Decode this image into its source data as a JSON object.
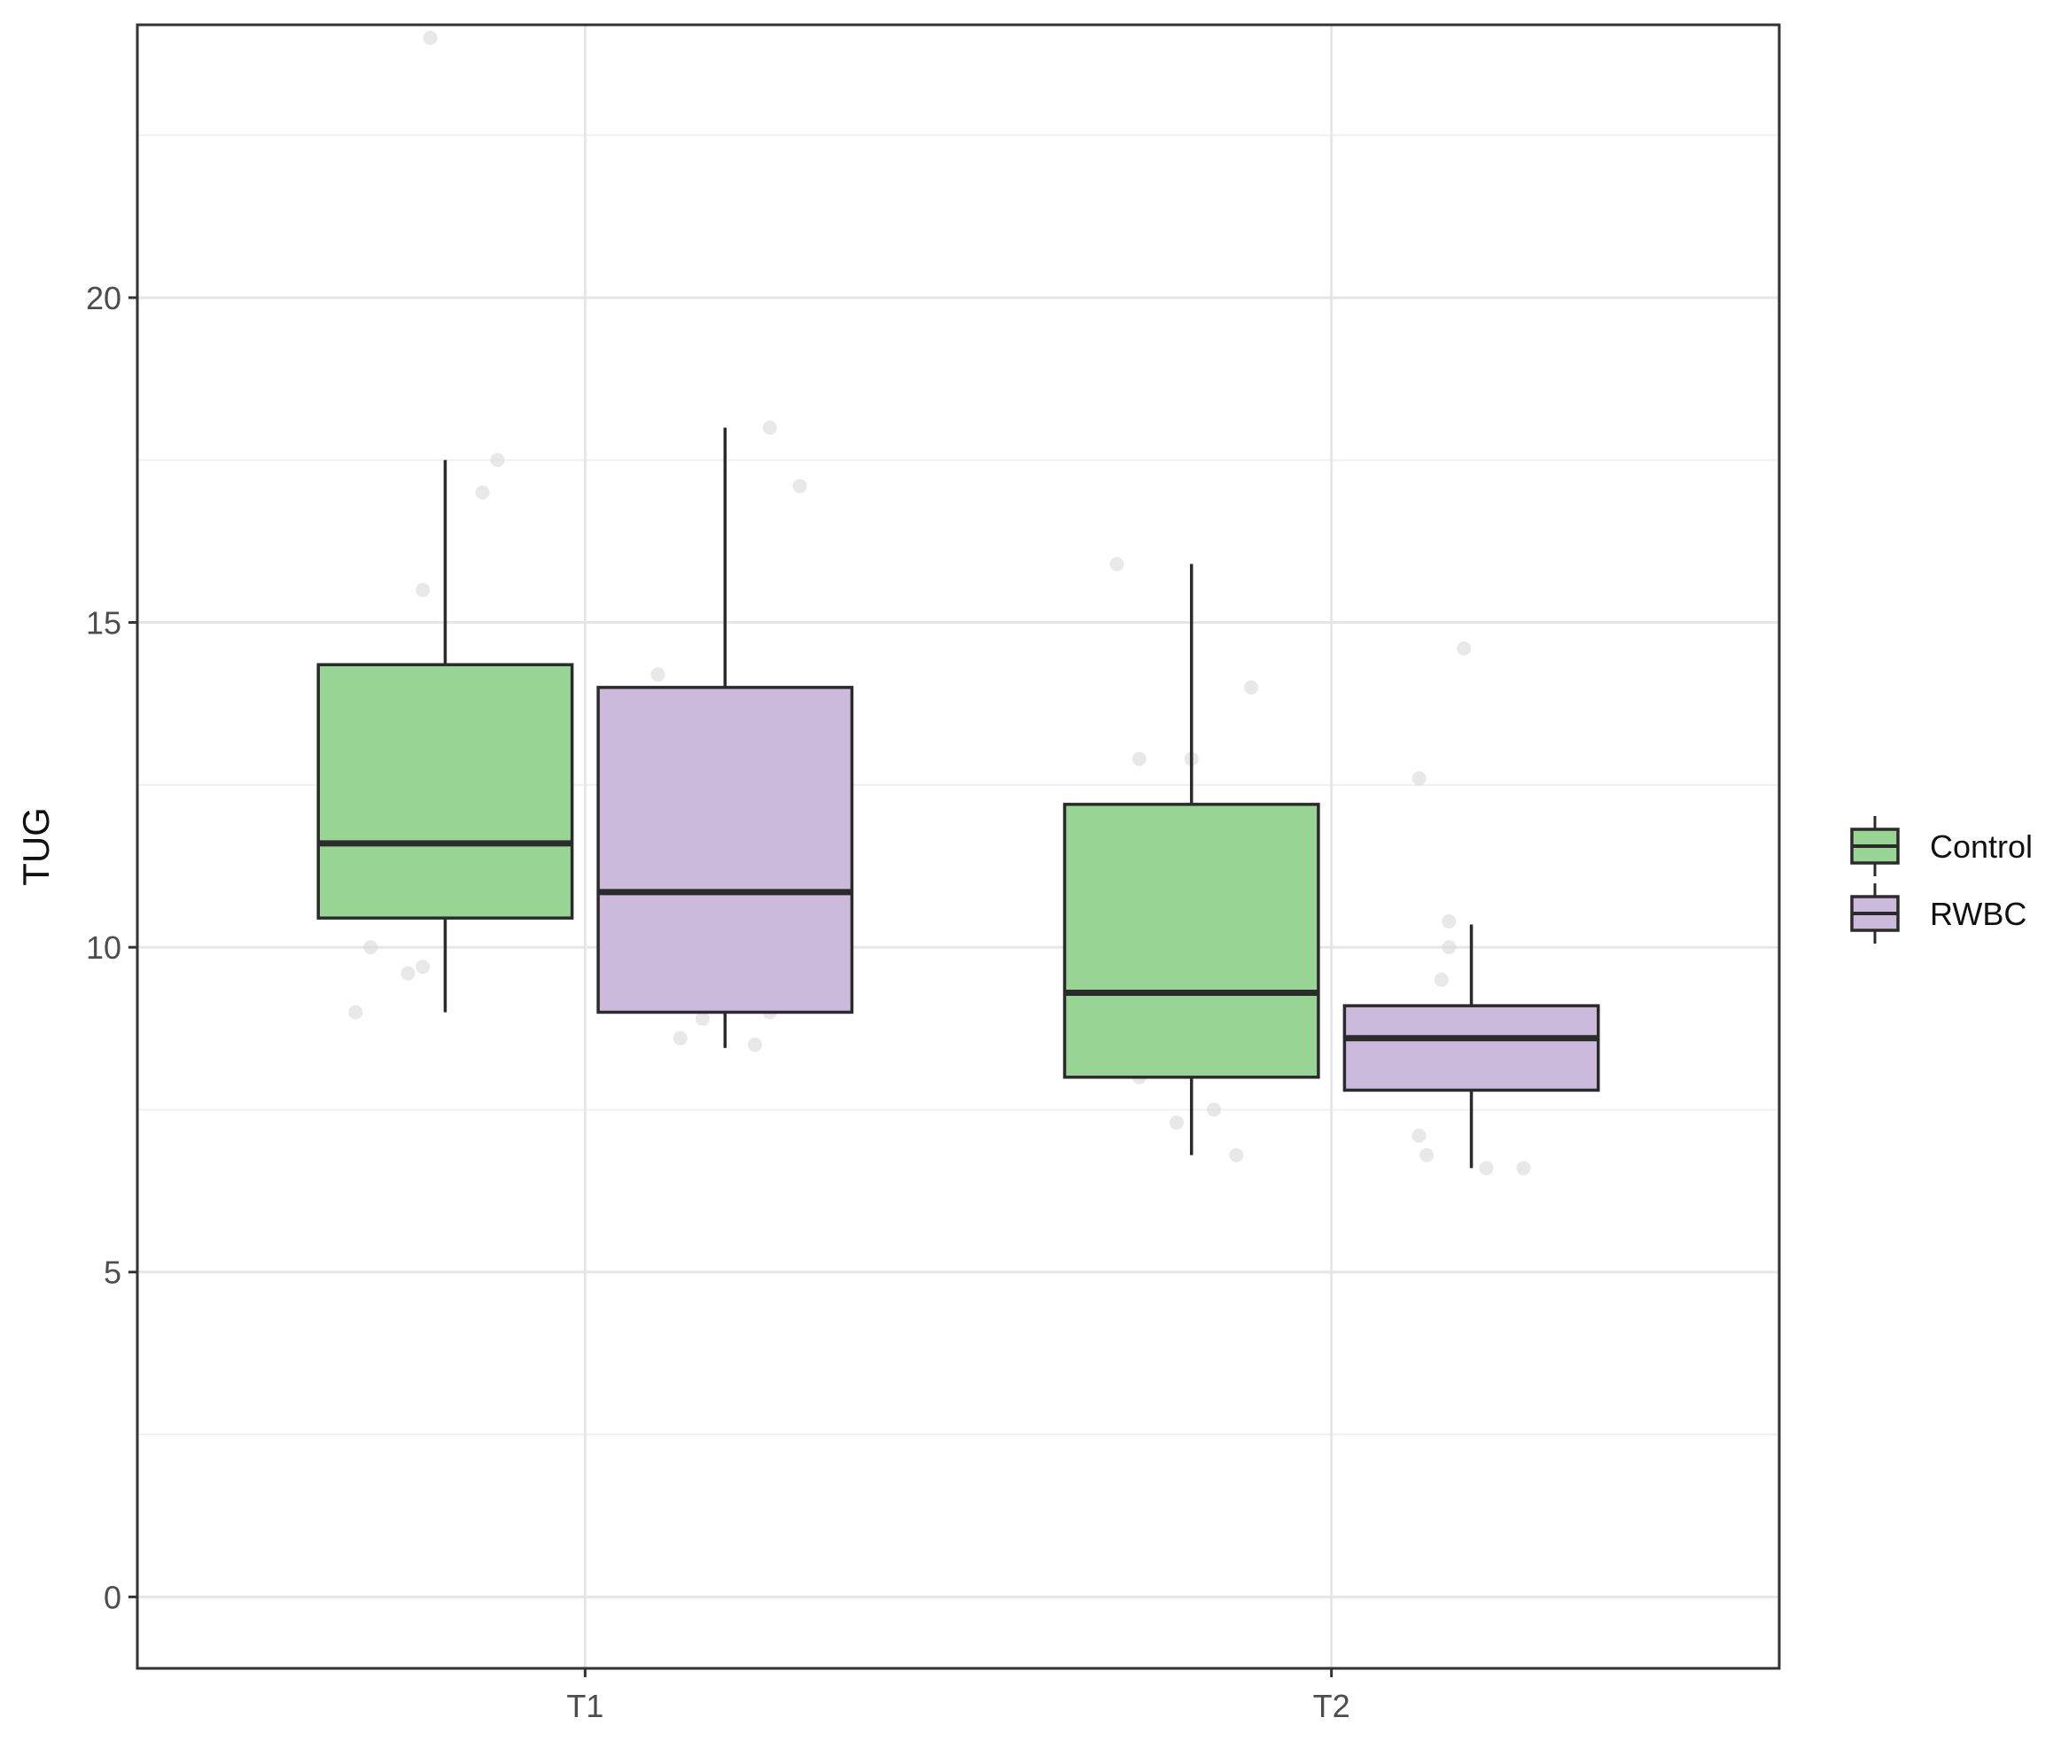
{
  "chart_data": {
    "type": "boxplot",
    "categories": [
      "T1",
      "T2"
    ],
    "ylabel": "TUG",
    "xlabel": "",
    "ylim": [
      -1.1,
      24.2
    ],
    "y_ticks": [
      0,
      5,
      10,
      15,
      20
    ],
    "grid": true,
    "legend": {
      "placement": "right",
      "entries": [
        "Control",
        "RWBC"
      ]
    },
    "colors": {
      "Control": "#98d595",
      "RWBC": "#cbbadc",
      "outline": "#2b2b2b",
      "points": "#d9d9d9"
    },
    "series": [
      {
        "name": "Control",
        "boxes": [
          {
            "category": "T1",
            "whisker_low": 9.0,
            "q1": 10.45,
            "median": 11.6,
            "q3": 14.35,
            "whisker_high": 17.5,
            "points": [
              [
                -0.1,
                14.0
              ],
              [
                -0.09,
                13.0
              ],
              [
                -0.08,
                12.0
              ],
              [
                -0.04,
                12.0
              ],
              [
                -0.09,
                11.2
              ],
              [
                -0.06,
                11.0
              ],
              [
                0.0,
                11.0
              ],
              [
                -0.1,
                10.7
              ],
              [
                -0.1,
                10.0
              ],
              [
                -0.05,
                9.6
              ],
              [
                -0.03,
                9.7
              ],
              [
                -0.12,
                9.0
              ],
              [
                -0.03,
                15.5
              ],
              [
                0.05,
                17.0
              ],
              [
                0.07,
                17.5
              ],
              [
                -0.02,
                24.0
              ]
            ]
          },
          {
            "category": "T2",
            "whisker_low": 6.8,
            "q1": 8.0,
            "median": 9.3,
            "q3": 12.2,
            "whisker_high": 15.9,
            "points": [
              [
                -0.1,
                15.9
              ],
              [
                -0.07,
                12.9
              ],
              [
                0.0,
                12.9
              ],
              [
                -0.03,
                12.0
              ],
              [
                -0.1,
                11.2
              ],
              [
                0.07,
                10.0
              ],
              [
                0.05,
                9.4
              ],
              [
                -0.05,
                9.2
              ],
              [
                0.05,
                8.9
              ],
              [
                -0.1,
                8.8
              ],
              [
                -0.07,
                8.0
              ],
              [
                0.03,
                7.5
              ],
              [
                -0.02,
                7.3
              ],
              [
                0.06,
                6.8
              ],
              [
                0.08,
                14.0
              ]
            ]
          }
        ]
      },
      {
        "name": "RWBC",
        "boxes": [
          {
            "category": "T1",
            "whisker_low": 8.45,
            "q1": 9.0,
            "median": 10.85,
            "q3": 14.0,
            "whisker_high": 18.0,
            "points": [
              [
                -0.09,
                14.2
              ],
              [
                -0.03,
                12.4
              ],
              [
                -0.05,
                11.8
              ],
              [
                -0.08,
                11.6
              ],
              [
                -0.02,
                11.2
              ],
              [
                -0.09,
                10.0
              ],
              [
                -0.03,
                9.2
              ],
              [
                -0.03,
                8.9
              ],
              [
                -0.06,
                8.6
              ],
              [
                0.04,
                8.5
              ],
              [
                0.06,
                9.0
              ],
              [
                0.1,
                10.0
              ],
              [
                0.04,
                10.5
              ],
              [
                0.06,
                18.0
              ],
              [
                0.1,
                17.1
              ]
            ]
          },
          {
            "category": "T2",
            "whisker_low": 6.6,
            "q1": 7.8,
            "median": 8.6,
            "q3": 9.1,
            "whisker_high": 10.35,
            "points": [
              [
                -0.01,
                14.6
              ],
              [
                -0.07,
                12.6
              ],
              [
                -0.03,
                10.4
              ],
              [
                -0.03,
                10.0
              ],
              [
                -0.04,
                9.5
              ],
              [
                -0.09,
                8.2
              ],
              [
                -0.02,
                8.2
              ],
              [
                0.07,
                8.5
              ],
              [
                0.05,
                8.9
              ],
              [
                -0.07,
                7.1
              ],
              [
                -0.06,
                6.8
              ],
              [
                0.02,
                6.6
              ],
              [
                0.07,
                6.6
              ]
            ]
          }
        ]
      }
    ]
  }
}
